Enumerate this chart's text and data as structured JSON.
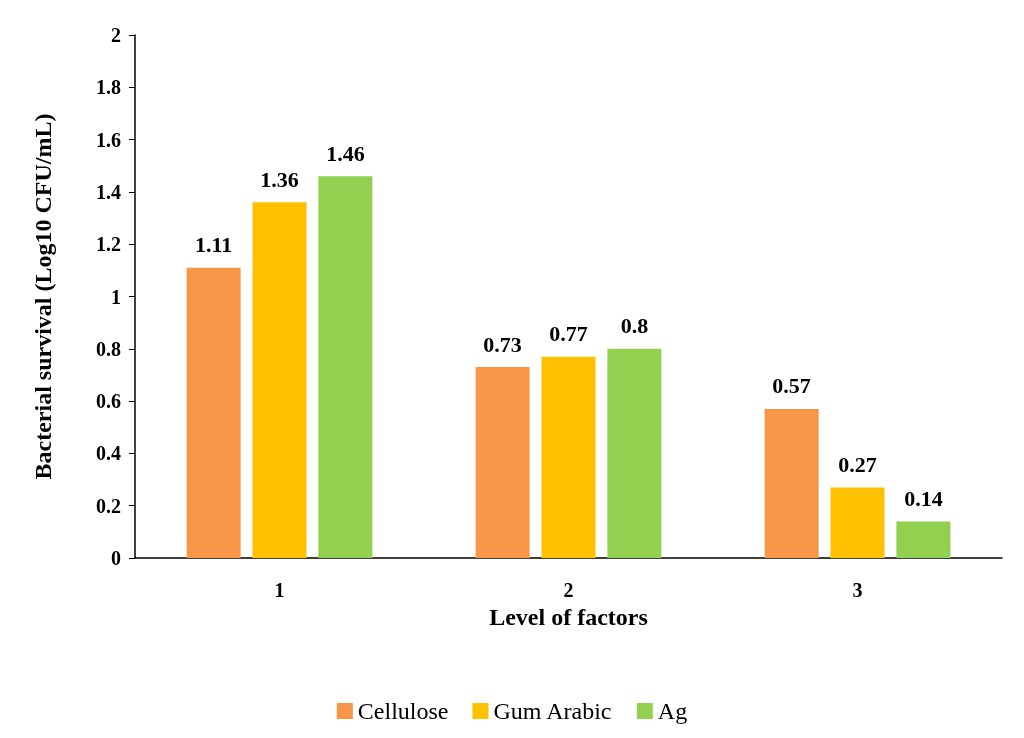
{
  "chart_data": {
    "type": "bar",
    "xlabel": "Level of factors",
    "ylabel": "Bacterial survival (Log10 CFU/mL)",
    "categories": [
      "1",
      "2",
      "3"
    ],
    "series": [
      {
        "name": "Cellulose",
        "color": "#f79646",
        "values": [
          1.11,
          0.73,
          0.57
        ]
      },
      {
        "name": "Gum Arabic",
        "color": "#ffc000",
        "values": [
          1.36,
          0.77,
          0.27
        ]
      },
      {
        "name": "Ag",
        "color": "#92d050",
        "values": [
          1.46,
          0.8,
          0.14
        ]
      }
    ],
    "ylim": [
      0,
      2
    ],
    "yticks": [
      0,
      0.2,
      0.4,
      0.6,
      0.8,
      1,
      1.2,
      1.4,
      1.6,
      1.8,
      2
    ],
    "grid": false,
    "legend": "bottom",
    "data_labels": true
  }
}
